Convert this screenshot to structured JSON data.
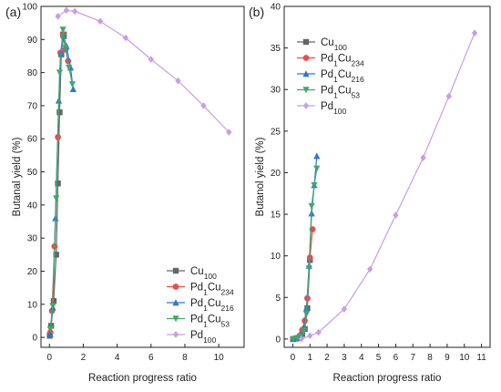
{
  "chart_data": [
    {
      "type": "line",
      "panel_label": "(a)",
      "xlabel": "Reaction progress ratio",
      "ylabel": "Butanal yield (%)",
      "xlim": [
        -0.5,
        11.5
      ],
      "ylim": [
        -3,
        100
      ],
      "xticks": [
        0,
        2,
        4,
        6,
        8,
        10
      ],
      "yticks": [
        0,
        10,
        20,
        30,
        40,
        50,
        60,
        70,
        80,
        90,
        100
      ],
      "legend_position": "bottom-right",
      "series": [
        {
          "label_main": "Cu",
          "label_sub": "100",
          "color": "#666666",
          "marker": "square",
          "x": [
            0.02,
            0.1,
            0.25,
            0.4,
            0.5,
            0.6,
            0.7,
            0.8,
            0.85
          ],
          "y": [
            0.5,
            3.5,
            11,
            25,
            46.5,
            68,
            85.5,
            91.5,
            91.5
          ]
        },
        {
          "label_main": "Pd",
          "label_sub1": "1",
          "label_main2": "Cu",
          "label_sub": "234",
          "color": "#ee4b4b",
          "marker": "circle",
          "x": [
            0.05,
            0.15,
            0.3,
            0.5,
            0.65,
            0.8,
            0.95,
            1.1
          ],
          "y": [
            1.5,
            8,
            27.5,
            60.5,
            86,
            91.5,
            87,
            83.5
          ]
        },
        {
          "label_main": "Pd",
          "label_sub1": "1",
          "label_main2": "Cu",
          "label_sub": "216",
          "color": "#2a78d6",
          "marker": "triangle-up",
          "x": [
            0.05,
            0.2,
            0.35,
            0.55,
            0.7,
            0.85,
            1.0,
            1.25,
            1.4
          ],
          "y": [
            1,
            9,
            36,
            71.5,
            86,
            91,
            88,
            81.5,
            75
          ]
        },
        {
          "label_main": "Pd",
          "label_sub1": "1",
          "label_main2": "Cu",
          "label_sub": "53",
          "color": "#3fa86b",
          "marker": "triangle-down",
          "x": [
            0.05,
            0.2,
            0.4,
            0.6,
            0.8,
            0.95,
            1.15,
            1.35
          ],
          "y": [
            2.5,
            9.5,
            42,
            80,
            93,
            87.5,
            81.5,
            76.5
          ]
        },
        {
          "label_main": "Pd",
          "label_sub": "100",
          "color": "#c89ee8",
          "marker": "diamond",
          "x": [
            0.5,
            1.0,
            1.5,
            3.0,
            4.5,
            6.0,
            7.6,
            9.1,
            10.6
          ],
          "y": [
            97,
            98.8,
            98.5,
            95.5,
            90.5,
            84,
            77.5,
            70,
            62
          ]
        }
      ]
    },
    {
      "type": "line",
      "panel_label": "(b)",
      "xlabel": "Reaction progress ratio",
      "ylabel": "Butanol yield (%)",
      "xlim": [
        -0.5,
        11.5
      ],
      "ylim": [
        -1,
        40
      ],
      "xticks": [
        0,
        1,
        2,
        3,
        4,
        5,
        6,
        7,
        8,
        9,
        10,
        11
      ],
      "yticks": [
        0,
        5,
        10,
        15,
        20,
        25,
        30,
        35,
        40
      ],
      "legend_position": "top-left",
      "series": [
        {
          "label_main": "Cu",
          "label_sub": "100",
          "color": "#666666",
          "marker": "square",
          "x": [
            0.02,
            0.2,
            0.4,
            0.55,
            0.7,
            0.85,
            1.0
          ],
          "y": [
            0,
            0.05,
            0.2,
            0.6,
            1.2,
            3.7,
            9.5
          ]
        },
        {
          "label_main": "Pd",
          "label_sub1": "1",
          "label_main2": "Cu",
          "label_sub": "234",
          "color": "#ee4b4b",
          "marker": "circle",
          "x": [
            0.02,
            0.2,
            0.4,
            0.55,
            0.7,
            0.85,
            1.0,
            1.15
          ],
          "y": [
            0,
            0.1,
            0.4,
            1.1,
            2.2,
            4.9,
            9.8,
            13.2
          ]
        },
        {
          "label_main": "Pd",
          "label_sub1": "1",
          "label_main2": "Cu",
          "label_sub": "216",
          "color": "#2a78d6",
          "marker": "triangle-up",
          "x": [
            0.02,
            0.25,
            0.45,
            0.65,
            0.8,
            0.95,
            1.1,
            1.25,
            1.4
          ],
          "y": [
            0,
            0.1,
            0.4,
            1.4,
            3.7,
            8.8,
            15.1,
            18.5,
            22
          ]
        },
        {
          "label_main": "Pd",
          "label_sub1": "1",
          "label_main2": "Cu",
          "label_sub": "53",
          "color": "#3fa86b",
          "marker": "triangle-down",
          "x": [
            0.02,
            0.25,
            0.45,
            0.65,
            0.8,
            0.95,
            1.1,
            1.25,
            1.4
          ],
          "y": [
            0,
            0.1,
            0.3,
            1.0,
            3.0,
            8.5,
            16,
            18.5,
            20.5
          ]
        },
        {
          "label_main": "Pd",
          "label_sub": "100",
          "color": "#c89ee8",
          "marker": "diamond",
          "x": [
            0.5,
            1.0,
            1.5,
            3.0,
            4.5,
            6.0,
            7.6,
            9.1,
            10.6
          ],
          "y": [
            0,
            0.4,
            0.8,
            3.6,
            8.4,
            14.9,
            21.8,
            29.2,
            36.8
          ]
        }
      ]
    }
  ]
}
